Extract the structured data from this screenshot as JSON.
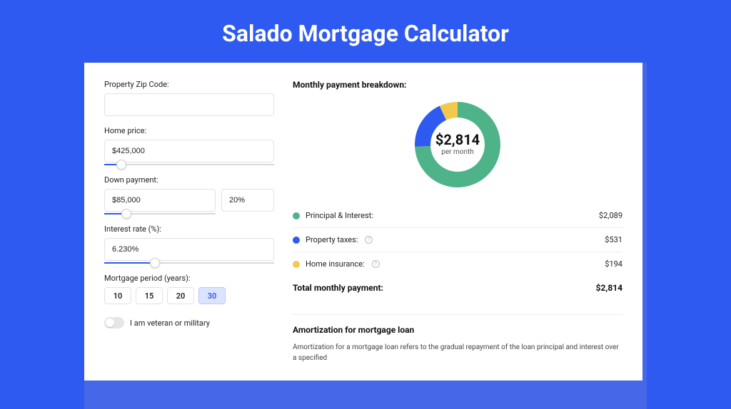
{
  "page": {
    "title": "Salado Mortgage Calculator",
    "background_color": "#2f5af2",
    "panel_shadow_color": "#4668e8",
    "panel_color": "#ffffff"
  },
  "form": {
    "zip": {
      "label": "Property Zip Code:",
      "value": ""
    },
    "home_price": {
      "label": "Home price:",
      "value": "$425,000",
      "slider_fill_pct": 10
    },
    "down_payment": {
      "label": "Down payment:",
      "amount": "$85,000",
      "pct": "20%",
      "slider_fill_pct": 20
    },
    "interest_rate": {
      "label": "Interest rate (%):",
      "value": "6.230%",
      "slider_fill_pct": 30
    },
    "period": {
      "label": "Mortgage period (years):",
      "options": [
        "10",
        "15",
        "20",
        "30"
      ],
      "selected": "30"
    },
    "veteran": {
      "label": "I am veteran or military",
      "on": false
    }
  },
  "breakdown": {
    "title": "Monthly payment breakdown:",
    "donut": {
      "type": "donut",
      "center_amount": "$2,814",
      "center_sub": "per month",
      "background_color": "#ffffff",
      "inner_radius": 38,
      "outer_radius": 60,
      "slices": [
        {
          "label": "Principal & Interest",
          "value": 2089,
          "color": "#4fb38a"
        },
        {
          "label": "Property taxes",
          "value": 531,
          "color": "#2f5af2"
        },
        {
          "label": "Home insurance",
          "value": 194,
          "color": "#f2c94c"
        }
      ]
    },
    "rows": [
      {
        "label": "Principal & Interest:",
        "amount": "$2,089",
        "color": "#4fb38a",
        "has_info": false
      },
      {
        "label": "Property taxes:",
        "amount": "$531",
        "color": "#2f5af2",
        "has_info": true
      },
      {
        "label": "Home insurance:",
        "amount": "$194",
        "color": "#f2c94c",
        "has_info": true
      }
    ],
    "total": {
      "label": "Total monthly payment:",
      "amount": "$2,814"
    }
  },
  "amortization": {
    "title": "Amortization for mortgage loan",
    "text": "Amortization for a mortgage loan refers to the gradual repayment of the loan principal and interest over a specified"
  }
}
